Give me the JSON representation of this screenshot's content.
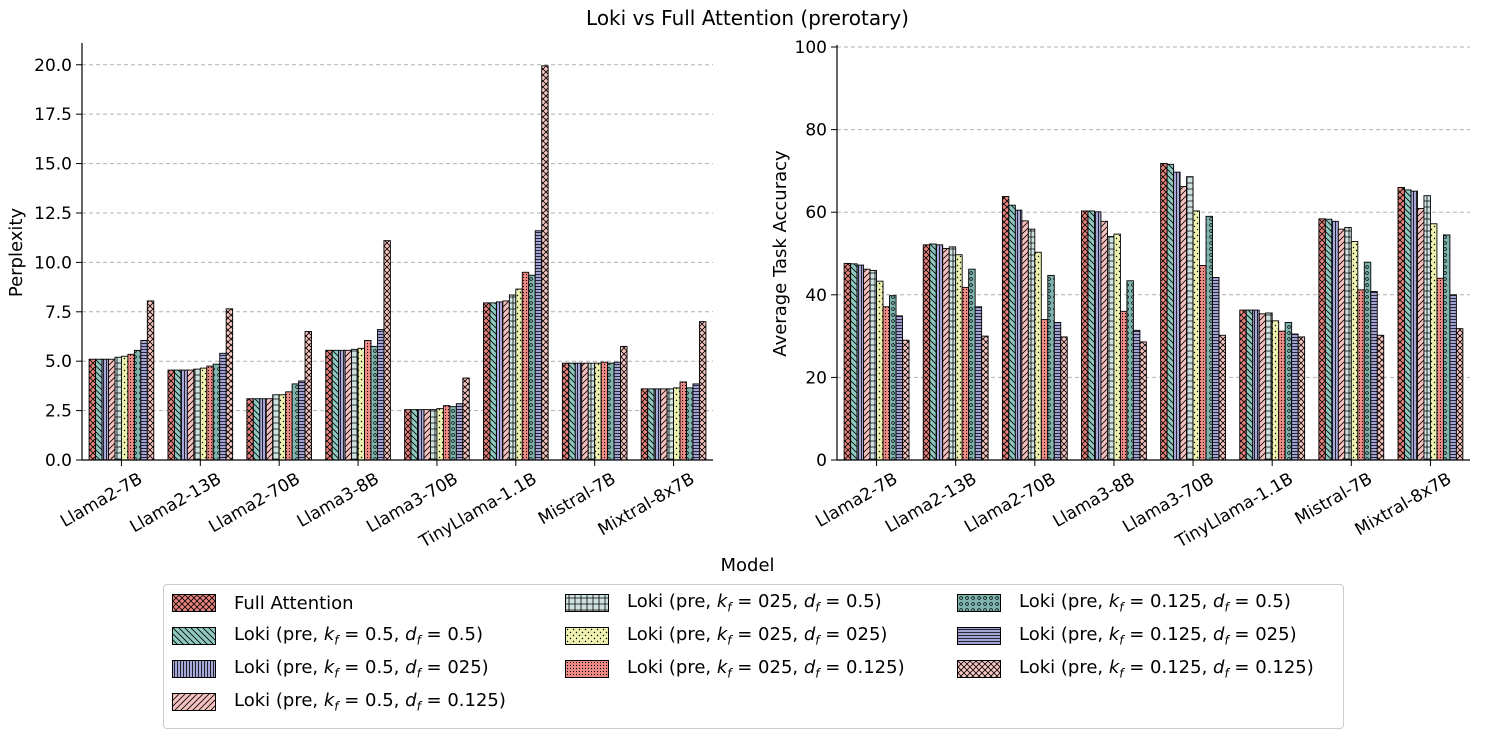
{
  "figure": {
    "title": "Loki vs Full Attention (prerotary)",
    "shared_xlabel": "Model"
  },
  "legend": {
    "entries": [
      {
        "label": "Full Attention",
        "color": "#e8837e",
        "hatch": "xx"
      },
      {
        "label": "Loki (pre, k_f = 0.5, d_f = 0.5)",
        "color": "#8ec8bf",
        "hatch": "\\\\"
      },
      {
        "label": "Loki (pre, k_f = 0.5, d_f = 025)",
        "color": "#a9a9d9",
        "hatch": "||"
      },
      {
        "label": "Loki (pre, k_f = 0.5, d_f = 0.125)",
        "color": "#f5c1bf",
        "hatch": "//"
      },
      {
        "label": "Loki (pre, k_f = 025, d_f = 0.5)",
        "color": "#cfe2e2",
        "hatch": "++"
      },
      {
        "label": "Loki (pre, k_f = 025, d_f = 025)",
        "color": "#eef2b0",
        "hatch": ".."
      },
      {
        "label": "Loki (pre, k_f = 025, d_f = 0.125)",
        "color": "#f08b86",
        "hatch": "..."
      },
      {
        "label": "Loki (pre, k_f = 0.125, d_f = 0.5)",
        "color": "#7fb5ae",
        "hatch": "oo"
      },
      {
        "label": "Loki (pre, k_f = 0.125, d_f = 025)",
        "color": "#a2a2d4",
        "hatch": "--"
      },
      {
        "label": "Loki (pre, k_f = 0.125, d_f = 0.125)",
        "color": "#f7c6c1",
        "hatch": "xx"
      }
    ]
  },
  "chart_data": [
    {
      "type": "bar",
      "title": "",
      "xlabel": "",
      "ylabel": "Perplexity",
      "ylim": [
        0,
        21
      ],
      "yticks": [
        "0.0",
        "2.5",
        "5.0",
        "7.5",
        "10.0",
        "12.5",
        "15.0",
        "17.5",
        "20.0"
      ],
      "grid": true,
      "categories": [
        "Llama2-7B",
        "Llama2-13B",
        "Llama2-70B",
        "Llama3-8B",
        "Llama3-70B",
        "TinyLlama-1.1B",
        "Mistral-7B",
        "Mixtral-8x7B"
      ],
      "series_values": [
        [
          5.1,
          5.1,
          5.1,
          5.1,
          5.2,
          5.25,
          5.35,
          5.55,
          6.05,
          8.05
        ],
        [
          4.55,
          4.55,
          4.55,
          4.55,
          4.6,
          4.65,
          4.75,
          4.85,
          5.4,
          7.65
        ],
        [
          3.1,
          3.1,
          3.1,
          3.1,
          3.3,
          3.3,
          3.45,
          3.85,
          4.0,
          6.5
        ],
        [
          5.55,
          5.55,
          5.55,
          5.55,
          5.6,
          5.65,
          6.05,
          5.75,
          6.6,
          11.1
        ],
        [
          2.55,
          2.55,
          2.55,
          2.55,
          2.55,
          2.6,
          2.75,
          2.7,
          2.85,
          4.15
        ],
        [
          7.95,
          7.95,
          8.0,
          8.05,
          8.35,
          8.65,
          9.5,
          9.35,
          11.6,
          19.95
        ],
        [
          4.9,
          4.9,
          4.9,
          4.9,
          4.9,
          4.9,
          4.95,
          4.9,
          4.95,
          5.75
        ],
        [
          3.6,
          3.6,
          3.6,
          3.6,
          3.6,
          3.65,
          3.95,
          3.65,
          3.85,
          7.0
        ]
      ]
    },
    {
      "type": "bar",
      "title": "",
      "xlabel": "",
      "ylabel": "Average Task Accuracy",
      "ylim": [
        0,
        100
      ],
      "yticks": [
        "0",
        "20",
        "40",
        "60",
        "80",
        "100"
      ],
      "grid": true,
      "categories": [
        "Llama2-7B",
        "Llama2-13B",
        "Llama2-70B",
        "Llama3-8B",
        "Llama3-70B",
        "TinyLlama-1.1B",
        "Mistral-7B",
        "Mixtral-8x7B"
      ],
      "series_values": [
        [
          47.6,
          47.5,
          47.2,
          46.2,
          45.9,
          43.3,
          37.1,
          39.8,
          34.9,
          29.0
        ],
        [
          52.1,
          52.3,
          52.1,
          51.2,
          51.6,
          49.7,
          41.8,
          46.2,
          37.1,
          30.0
        ],
        [
          63.8,
          61.7,
          60.5,
          57.9,
          55.9,
          50.3,
          34.0,
          44.7,
          33.3,
          29.8
        ],
        [
          60.3,
          60.3,
          60.1,
          57.8,
          54.1,
          54.7,
          36.0,
          43.4,
          31.4,
          28.6
        ],
        [
          71.8,
          71.6,
          69.7,
          66.2,
          68.6,
          60.3,
          47.1,
          59.0,
          44.2,
          30.2
        ],
        [
          36.3,
          36.3,
          36.3,
          35.4,
          35.6,
          33.7,
          31.2,
          33.3,
          30.5,
          29.8
        ],
        [
          58.4,
          58.3,
          57.8,
          55.9,
          56.3,
          52.9,
          41.2,
          47.9,
          40.8,
          30.2
        ],
        [
          66.0,
          65.4,
          65.1,
          60.9,
          64.0,
          57.2,
          44.0,
          54.5,
          40.0,
          31.8
        ]
      ]
    }
  ]
}
